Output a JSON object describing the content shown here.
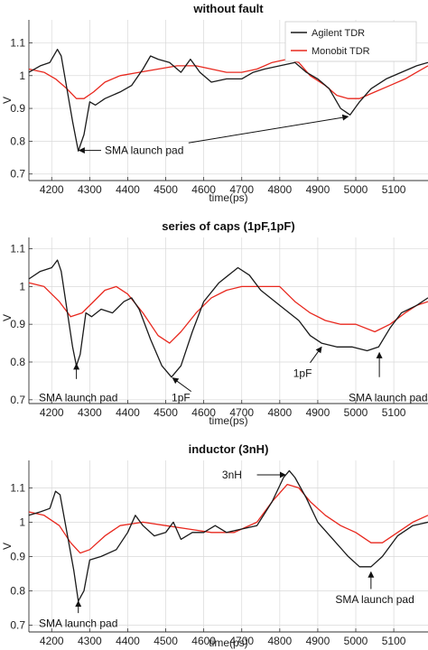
{
  "colors": {
    "agilent": "#1a1a1a",
    "monobit": "#e8281e",
    "grid": "#d9d9d9",
    "axis": "#333333"
  },
  "chart_data": [
    {
      "type": "line",
      "title": "without fault",
      "xlabel": "time(ps)",
      "ylabel": "V",
      "xlim": [
        4140,
        5190
      ],
      "ylim": [
        0.68,
        1.17
      ],
      "xticks": [
        4200,
        4300,
        4400,
        4500,
        4600,
        4700,
        4800,
        4900,
        5000,
        5100
      ],
      "yticks": [
        0.7,
        0.8,
        0.9,
        1,
        1.1
      ],
      "grid": true,
      "legend": {
        "placement": "top-right",
        "entries": [
          "Agilent TDR",
          "Monobit TDR"
        ]
      },
      "series": [
        {
          "name": "Agilent TDR",
          "color": "agilent",
          "points": [
            [
              4140,
              1.01
            ],
            [
              4170,
              1.03
            ],
            [
              4195,
              1.04
            ],
            [
              4215,
              1.08
            ],
            [
              4225,
              1.06
            ],
            [
              4240,
              0.96
            ],
            [
              4255,
              0.86
            ],
            [
              4270,
              0.77
            ],
            [
              4285,
              0.82
            ],
            [
              4300,
              0.92
            ],
            [
              4315,
              0.91
            ],
            [
              4340,
              0.93
            ],
            [
              4380,
              0.95
            ],
            [
              4410,
              0.97
            ],
            [
              4440,
              1.02
            ],
            [
              4460,
              1.06
            ],
            [
              4480,
              1.05
            ],
            [
              4510,
              1.04
            ],
            [
              4540,
              1.01
            ],
            [
              4565,
              1.05
            ],
            [
              4590,
              1.01
            ],
            [
              4620,
              0.98
            ],
            [
              4660,
              0.99
            ],
            [
              4700,
              0.99
            ],
            [
              4730,
              1.01
            ],
            [
              4760,
              1.02
            ],
            [
              4800,
              1.03
            ],
            [
              4840,
              1.04
            ],
            [
              4870,
              1.01
            ],
            [
              4900,
              0.99
            ],
            [
              4930,
              0.96
            ],
            [
              4960,
              0.9
            ],
            [
              4985,
              0.88
            ],
            [
              5010,
              0.92
            ],
            [
              5040,
              0.96
            ],
            [
              5080,
              0.99
            ],
            [
              5120,
              1.01
            ],
            [
              5160,
              1.03
            ],
            [
              5190,
              1.04
            ]
          ]
        },
        {
          "name": "Monobit TDR",
          "color": "monobit",
          "points": [
            [
              4140,
              1.02
            ],
            [
              4180,
              1.01
            ],
            [
              4210,
              0.99
            ],
            [
              4240,
              0.96
            ],
            [
              4265,
              0.93
            ],
            [
              4285,
              0.93
            ],
            [
              4310,
              0.95
            ],
            [
              4340,
              0.98
            ],
            [
              4380,
              1.0
            ],
            [
              4430,
              1.01
            ],
            [
              4480,
              1.02
            ],
            [
              4530,
              1.03
            ],
            [
              4580,
              1.03
            ],
            [
              4620,
              1.02
            ],
            [
              4660,
              1.01
            ],
            [
              4700,
              1.01
            ],
            [
              4740,
              1.02
            ],
            [
              4780,
              1.04
            ],
            [
              4820,
              1.05
            ],
            [
              4850,
              1.04
            ],
            [
              4880,
              1.0
            ],
            [
              4920,
              0.97
            ],
            [
              4950,
              0.94
            ],
            [
              4980,
              0.93
            ],
            [
              5010,
              0.93
            ],
            [
              5050,
              0.95
            ],
            [
              5090,
              0.97
            ],
            [
              5130,
              0.99
            ],
            [
              5160,
              1.01
            ],
            [
              5190,
              1.03
            ]
          ]
        }
      ],
      "annotations": [
        {
          "text": "SMA launch pad",
          "text_at": [
            4330,
            0.772
          ],
          "arrow_from": [
            4330,
            0.772
          ],
          "arrow_to": [
            4272,
            0.772
          ]
        },
        {
          "text": "",
          "arrow_from": [
            4560,
            0.795
          ],
          "arrow_to": [
            4980,
            0.875
          ]
        }
      ]
    },
    {
      "type": "line",
      "title": "series of caps (1pF,1pF)",
      "xlabel": "time(ps)",
      "ylabel": "V",
      "xlim": [
        4140,
        5190
      ],
      "ylim": [
        0.69,
        1.13
      ],
      "xticks": [
        4200,
        4300,
        4400,
        4500,
        4600,
        4700,
        4800,
        4900,
        5000,
        5100
      ],
      "yticks": [
        0.7,
        0.8,
        0.9,
        1,
        1.1
      ],
      "grid": true,
      "series": [
        {
          "name": "Agilent TDR",
          "color": "agilent",
          "points": [
            [
              4140,
              1.02
            ],
            [
              4170,
              1.04
            ],
            [
              4200,
              1.05
            ],
            [
              4215,
              1.07
            ],
            [
              4225,
              1.04
            ],
            [
              4240,
              0.94
            ],
            [
              4255,
              0.84
            ],
            [
              4265,
              0.79
            ],
            [
              4275,
              0.82
            ],
            [
              4290,
              0.93
            ],
            [
              4305,
              0.92
            ],
            [
              4330,
              0.94
            ],
            [
              4360,
              0.93
            ],
            [
              4390,
              0.96
            ],
            [
              4410,
              0.97
            ],
            [
              4430,
              0.94
            ],
            [
              4460,
              0.86
            ],
            [
              4490,
              0.79
            ],
            [
              4515,
              0.76
            ],
            [
              4540,
              0.79
            ],
            [
              4570,
              0.88
            ],
            [
              4600,
              0.96
            ],
            [
              4640,
              1.01
            ],
            [
              4690,
              1.05
            ],
            [
              4720,
              1.03
            ],
            [
              4750,
              0.99
            ],
            [
              4800,
              0.95
            ],
            [
              4850,
              0.91
            ],
            [
              4880,
              0.87
            ],
            [
              4910,
              0.85
            ],
            [
              4950,
              0.84
            ],
            [
              4990,
              0.84
            ],
            [
              5030,
              0.83
            ],
            [
              5060,
              0.84
            ],
            [
              5090,
              0.89
            ],
            [
              5120,
              0.93
            ],
            [
              5160,
              0.95
            ],
            [
              5190,
              0.97
            ]
          ]
        },
        {
          "name": "Monobit TDR",
          "color": "monobit",
          "points": [
            [
              4140,
              1.01
            ],
            [
              4180,
              1.0
            ],
            [
              4220,
              0.96
            ],
            [
              4250,
              0.92
            ],
            [
              4280,
              0.93
            ],
            [
              4310,
              0.96
            ],
            [
              4340,
              0.99
            ],
            [
              4370,
              1.0
            ],
            [
              4400,
              0.98
            ],
            [
              4440,
              0.93
            ],
            [
              4480,
              0.87
            ],
            [
              4510,
              0.85
            ],
            [
              4540,
              0.88
            ],
            [
              4580,
              0.93
            ],
            [
              4620,
              0.97
            ],
            [
              4660,
              0.99
            ],
            [
              4700,
              1.0
            ],
            [
              4760,
              1.0
            ],
            [
              4800,
              1.0
            ],
            [
              4840,
              0.96
            ],
            [
              4880,
              0.93
            ],
            [
              4920,
              0.91
            ],
            [
              4960,
              0.9
            ],
            [
              5000,
              0.9
            ],
            [
              5050,
              0.88
            ],
            [
              5090,
              0.9
            ],
            [
              5130,
              0.93
            ],
            [
              5160,
              0.95
            ],
            [
              5190,
              0.96
            ]
          ]
        }
      ],
      "annotations": [
        {
          "text": "SMA launch pad",
          "text_at": [
            4270,
            0.705
          ],
          "arrow_from": [
            4265,
            0.755
          ],
          "arrow_to": [
            4265,
            0.795
          ]
        },
        {
          "text": "1pF",
          "text_at": [
            4540,
            0.705
          ],
          "arrow_from": [
            4567,
            0.722
          ],
          "arrow_to": [
            4518,
            0.758
          ]
        },
        {
          "text": "1pF",
          "text_at": [
            4860,
            0.77
          ],
          "arrow_from": [
            4880,
            0.798
          ],
          "arrow_to": [
            4910,
            0.84
          ]
        },
        {
          "text": "SMA launch pad",
          "text_at": [
            5085,
            0.705
          ],
          "arrow_from": [
            5062,
            0.76
          ],
          "arrow_to": [
            5062,
            0.825
          ]
        }
      ]
    },
    {
      "type": "line",
      "title": "inductor (3nH)",
      "xlabel": "time(ps)",
      "ylabel": "V",
      "xlim": [
        4140,
        5190
      ],
      "ylim": [
        0.68,
        1.18
      ],
      "xticks": [
        4200,
        4300,
        4400,
        4500,
        4600,
        4700,
        4800,
        4900,
        5000,
        5100
      ],
      "yticks": [
        0.7,
        0.8,
        0.9,
        1,
        1.1
      ],
      "grid": true,
      "series": [
        {
          "name": "Agilent TDR",
          "color": "agilent",
          "points": [
            [
              4140,
              1.02
            ],
            [
              4170,
              1.03
            ],
            [
              4195,
              1.04
            ],
            [
              4210,
              1.09
            ],
            [
              4222,
              1.08
            ],
            [
              4240,
              0.97
            ],
            [
              4258,
              0.86
            ],
            [
              4270,
              0.77
            ],
            [
              4285,
              0.8
            ],
            [
              4300,
              0.89
            ],
            [
              4330,
              0.9
            ],
            [
              4370,
              0.92
            ],
            [
              4400,
              0.97
            ],
            [
              4420,
              1.02
            ],
            [
              4440,
              0.99
            ],
            [
              4470,
              0.96
            ],
            [
              4500,
              0.97
            ],
            [
              4520,
              1.0
            ],
            [
              4540,
              0.95
            ],
            [
              4570,
              0.97
            ],
            [
              4600,
              0.97
            ],
            [
              4630,
              0.99
            ],
            [
              4660,
              0.97
            ],
            [
              4700,
              0.98
            ],
            [
              4740,
              0.99
            ],
            [
              4780,
              1.06
            ],
            [
              4810,
              1.13
            ],
            [
              4825,
              1.15
            ],
            [
              4840,
              1.13
            ],
            [
              4870,
              1.07
            ],
            [
              4900,
              1.0
            ],
            [
              4940,
              0.95
            ],
            [
              4980,
              0.9
            ],
            [
              5010,
              0.87
            ],
            [
              5040,
              0.87
            ],
            [
              5070,
              0.9
            ],
            [
              5110,
              0.96
            ],
            [
              5150,
              0.99
            ],
            [
              5190,
              1.0
            ]
          ]
        },
        {
          "name": "Monobit TDR",
          "color": "monobit",
          "points": [
            [
              4140,
              1.03
            ],
            [
              4180,
              1.02
            ],
            [
              4220,
              0.99
            ],
            [
              4250,
              0.94
            ],
            [
              4275,
              0.91
            ],
            [
              4300,
              0.92
            ],
            [
              4340,
              0.96
            ],
            [
              4380,
              0.99
            ],
            [
              4440,
              1.0
            ],
            [
              4500,
              0.99
            ],
            [
              4560,
              0.98
            ],
            [
              4620,
              0.97
            ],
            [
              4680,
              0.97
            ],
            [
              4740,
              1.0
            ],
            [
              4780,
              1.06
            ],
            [
              4820,
              1.11
            ],
            [
              4850,
              1.1
            ],
            [
              4880,
              1.06
            ],
            [
              4920,
              1.02
            ],
            [
              4960,
              0.99
            ],
            [
              5000,
              0.97
            ],
            [
              5040,
              0.94
            ],
            [
              5070,
              0.94
            ],
            [
              5110,
              0.97
            ],
            [
              5150,
              1.0
            ],
            [
              5190,
              1.02
            ]
          ]
        }
      ],
      "annotations": [
        {
          "text": "3nH",
          "text_at": [
            4710,
            1.138
          ],
          "arrow_from": [
            4740,
            1.138
          ],
          "arrow_to": [
            4815,
            1.138
          ]
        },
        {
          "text": "SMA launch pad",
          "text_at": [
            4270,
            0.705
          ],
          "arrow_from": [
            4270,
            0.735
          ],
          "arrow_to": [
            4270,
            0.77
          ]
        },
        {
          "text": "SMA launch pad",
          "text_at": [
            5050,
            0.775
          ],
          "arrow_from": [
            5040,
            0.805
          ],
          "arrow_to": [
            5040,
            0.855
          ]
        }
      ]
    }
  ]
}
